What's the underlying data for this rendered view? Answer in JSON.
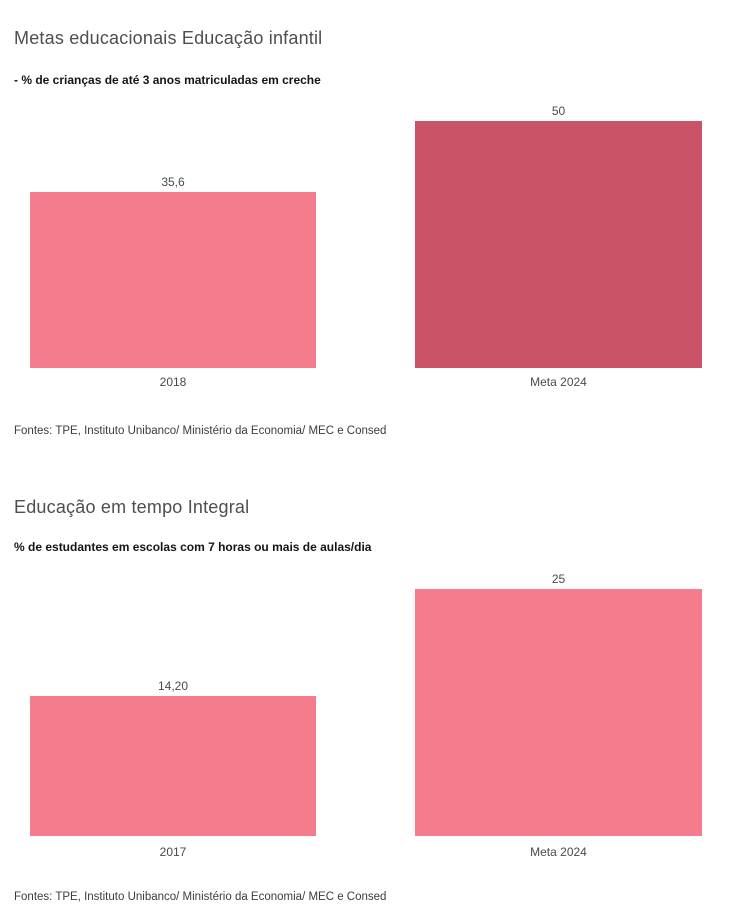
{
  "page": {
    "background": "#ffffff"
  },
  "chart_data": [
    {
      "type": "bar",
      "title": "Metas educacionais Educação infantil",
      "subtitle": "- % de crianças de até 3 anos matriculadas em creche",
      "footer": "Fontes: TPE, Instituto Unibanco/ Ministério da Economia/ MEC e Consed",
      "categories": [
        "2018",
        "Meta 2024"
      ],
      "values": [
        35.6,
        50
      ],
      "value_labels": [
        "35,6",
        "50"
      ],
      "bar_colors": [
        "#F57C8C",
        "#CB5368"
      ],
      "xlabel": "",
      "ylabel": "",
      "ylim": [
        0,
        50
      ],
      "grid": false,
      "legend": "none"
    },
    {
      "type": "bar",
      "title": "Educação em tempo Integral",
      "subtitle": "% de estudantes em escolas com 7 horas ou mais de aulas/dia",
      "footer": "Fontes: TPE, Instituto Unibanco/ Ministério da Economia/ MEC e Consed",
      "categories": [
        "2017",
        "Meta 2024"
      ],
      "values": [
        14.2,
        25
      ],
      "value_labels": [
        "14,20",
        "25"
      ],
      "bar_colors": [
        "#F57C8C",
        "#F57C8C"
      ],
      "xlabel": "",
      "ylabel": "",
      "ylim": [
        0,
        25
      ],
      "grid": false,
      "legend": "none"
    }
  ]
}
